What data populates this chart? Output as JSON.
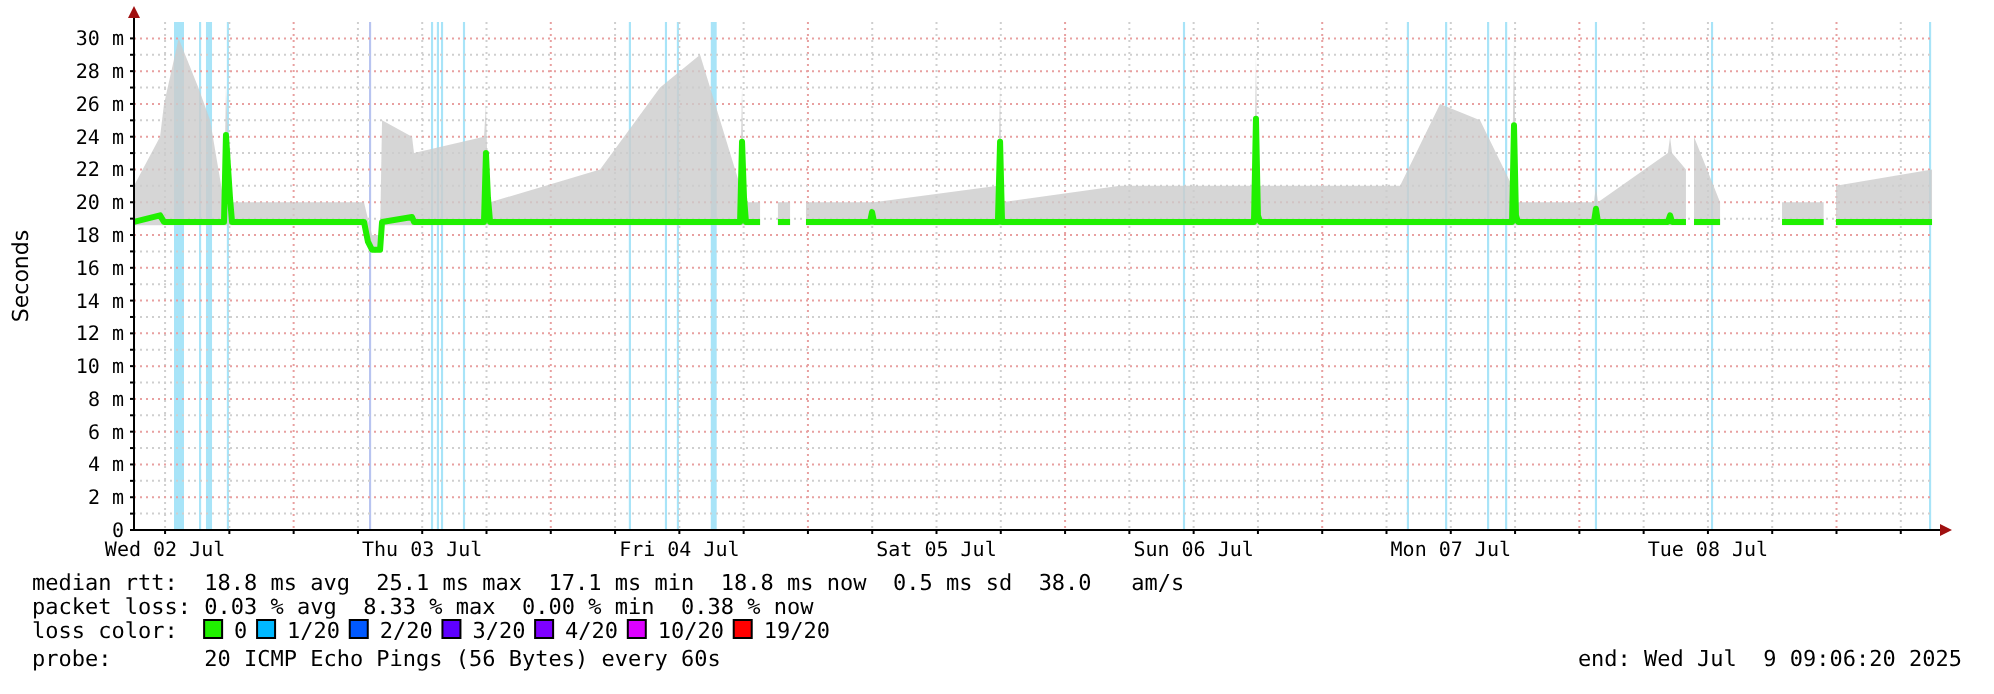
{
  "chart_data": {
    "type": "line",
    "ylabel": "Seconds",
    "legend_title": "loss color:",
    "legend": "bottom",
    "grid": true,
    "xlim": [
      "2025-07-02T09:06",
      "2025-07-09T09:06"
    ],
    "xticks": [
      {
        "value": "2025-07-02T12:00",
        "label": "Wed 02 Jul"
      },
      {
        "value": "2025-07-02T18:00",
        "label": null
      },
      {
        "value": "2025-07-03T00:00",
        "label": null
      },
      {
        "value": "2025-07-03T06:00",
        "label": null
      },
      {
        "value": "2025-07-03T12:00",
        "label": "Thu 03 Jul"
      },
      {
        "value": "2025-07-03T18:00",
        "label": null
      },
      {
        "value": "2025-07-04T00:00",
        "label": null
      },
      {
        "value": "2025-07-04T06:00",
        "label": null
      },
      {
        "value": "2025-07-04T12:00",
        "label": "Fri 04 Jul"
      },
      {
        "value": "2025-07-04T18:00",
        "label": null
      },
      {
        "value": "2025-07-05T00:00",
        "label": null
      },
      {
        "value": "2025-07-05T06:00",
        "label": null
      },
      {
        "value": "2025-07-05T12:00",
        "label": "Sat 05 Jul"
      },
      {
        "value": "2025-07-05T18:00",
        "label": null
      },
      {
        "value": "2025-07-06T00:00",
        "label": null
      },
      {
        "value": "2025-07-06T06:00",
        "label": null
      },
      {
        "value": "2025-07-06T12:00",
        "label": "Sun 06 Jul"
      },
      {
        "value": "2025-07-06T18:00",
        "label": null
      },
      {
        "value": "2025-07-07T00:00",
        "label": null
      },
      {
        "value": "2025-07-07T06:00",
        "label": null
      },
      {
        "value": "2025-07-07T12:00",
        "label": "Mon 07 Jul"
      },
      {
        "value": "2025-07-07T18:00",
        "label": null
      },
      {
        "value": "2025-07-08T00:00",
        "label": null
      },
      {
        "value": "2025-07-08T06:00",
        "label": null
      },
      {
        "value": "2025-07-08T12:00",
        "label": "Tue 08 Jul"
      },
      {
        "value": "2025-07-08T18:00",
        "label": null
      },
      {
        "value": "2025-07-09T00:00",
        "label": null
      },
      {
        "value": "2025-07-09T06:00",
        "label": null
      }
    ],
    "ylim": [
      0,
      31
    ],
    "yticks": [
      0,
      {
        "value": 1,
        "label": null
      },
      {
        "value": 2,
        "label": "2 m"
      },
      {
        "value": 3,
        "label": null
      },
      {
        "value": 4,
        "label": "4 m"
      },
      {
        "value": 5,
        "label": null
      },
      {
        "value": 6,
        "label": "6 m"
      },
      {
        "value": 7,
        "label": null
      },
      {
        "value": 8,
        "label": "8 m"
      },
      {
        "value": 9,
        "label": null
      },
      {
        "value": 10,
        "label": "10 m"
      },
      {
        "value": 11,
        "label": null
      },
      {
        "value": 12,
        "label": "12 m"
      },
      {
        "value": 13,
        "label": null
      },
      {
        "value": 14,
        "label": "14 m"
      },
      {
        "value": 15,
        "label": null
      },
      {
        "value": 16,
        "label": "16 m"
      },
      {
        "value": 17,
        "label": null
      },
      {
        "value": 18,
        "label": "18 m"
      },
      {
        "value": 19,
        "label": null
      },
      {
        "value": 20,
        "label": "20 m"
      },
      {
        "value": 21,
        "label": null
      },
      {
        "value": 22,
        "label": "22 m"
      },
      {
        "value": 23,
        "label": null
      },
      {
        "value": 24,
        "label": "24 m"
      },
      {
        "value": 25,
        "label": null
      },
      {
        "value": 26,
        "label": "26 m"
      },
      {
        "value": 27,
        "label": null
      },
      {
        "value": 28,
        "label": "28 m"
      },
      {
        "value": 29,
        "label": null
      },
      {
        "value": 30,
        "label": "30 m"
      }
    ],
    "series": [
      {
        "name": "0",
        "color": "#20f000",
        "x": [
          "2025-07-02T09:06",
          "2025-07-02T11:32",
          "2025-07-02T11:54",
          "2025-07-02T13:16",
          "2025-07-02T15:06",
          "2025-07-02T16:12",
          "2025-07-02T17:30",
          "2025-07-02T17:41",
          "2025-07-02T18:04",
          "2025-07-02T18:15",
          "2025-07-03T00:36",
          "2025-07-03T06:34",
          "2025-07-03T06:56",
          "2025-07-03T07:19",
          "2025-07-03T08:04",
          "2025-07-03T08:15",
          "2025-07-03T11:03",
          "2025-07-03T11:14",
          "2025-07-03T17:46",
          "2025-07-03T17:57",
          "2025-07-03T18:08",
          "2025-07-03T18:20",
          "2025-07-04T04:36",
          "2025-07-04T10:12",
          "2025-07-04T13:56",
          "2025-07-04T17:40",
          "2025-07-04T17:51",
          "2025-07-04T18:02",
          "2025-07-04T18:13",
          "2025-07-04T19:32",
          "2025-07-04T20:16",
          "2025-07-04T21:12",
          "2025-07-04T22:20",
          "2025-07-04T23:04",
          "2025-07-04T23:49",
          "2025-07-05T05:48",
          "2025-07-05T05:59",
          "2025-07-05T06:10",
          "2025-07-05T17:44",
          "2025-07-05T17:56",
          "2025-07-05T18:07",
          "2025-07-06T05:08",
          "2025-07-06T17:38",
          "2025-07-06T17:49",
          "2025-07-06T18:00",
          "2025-07-06T18:12",
          "2025-07-07T07:16",
          "2025-07-07T11:00",
          "2025-07-07T14:44",
          "2025-07-07T17:43",
          "2025-07-07T17:54",
          "2025-07-07T18:05",
          "2025-07-07T18:16",
          "2025-07-08T01:22",
          "2025-07-08T01:33",
          "2025-07-08T01:44",
          "2025-07-08T08:16",
          "2025-07-08T08:28",
          "2025-07-08T08:39",
          "2025-07-08T09:57",
          "2025-07-08T10:20",
          "2025-07-08T10:42",
          "2025-07-08T13:08",
          "2025-07-08T15:56",
          "2025-07-08T18:55",
          "2025-07-08T21:54",
          "2025-07-08T22:18",
          "2025-07-08T22:33",
          "2025-07-08T22:48",
          "2025-07-08T23:24",
          "2025-07-08T23:57",
          "2025-07-09T08:55"
        ],
        "values": [
          18.8,
          19.2,
          18.8,
          18.8,
          18.8,
          18.8,
          18.8,
          24.1,
          20.2,
          18.8,
          18.8,
          18.8,
          17.6,
          17.1,
          17.1,
          18.8,
          19.1,
          18.8,
          18.8,
          23,
          20.3,
          18.8,
          18.8,
          18.8,
          18.8,
          18.8,
          23.7,
          20.3,
          18.8,
          18.8,
          null,
          18.8,
          18.8,
          null,
          18.8,
          18.8,
          19.4,
          18.8,
          18.8,
          23.7,
          18.8,
          18.8,
          18.8,
          25.1,
          19.2,
          18.8,
          18.8,
          18.8,
          18.8,
          18.8,
          24.7,
          19.2,
          18.8,
          18.8,
          19.6,
          18.8,
          18.8,
          19.2,
          18.8,
          18.8,
          null,
          18.8,
          18.8,
          null,
          18.8,
          18.8,
          18.8,
          18.8,
          18.8,
          null,
          18.8,
          18.8
        ],
        "lower": [
          18.6,
          18.6,
          18.6,
          18.6,
          18.6,
          18.6,
          18.6,
          18.6,
          18.6,
          18.6,
          18.6,
          18.6,
          17.4,
          17,
          17,
          18.6,
          18.6,
          18.6,
          18.6,
          18.6,
          18.6,
          18.6,
          18.6,
          18.6,
          18.6,
          18.6,
          18.6,
          18.6,
          18.6,
          18.6,
          null,
          18.6,
          18.6,
          null,
          18.6,
          18.6,
          18.6,
          18.6,
          18.6,
          18.6,
          18.6,
          18.6,
          18.6,
          18.6,
          18.6,
          18.6,
          18.6,
          18.6,
          18.6,
          18.6,
          18.6,
          18.6,
          18.6,
          18.6,
          18.6,
          18.6,
          18.6,
          18.6,
          18.6,
          18.6,
          null,
          18.6,
          18.6,
          null,
          18.6,
          18.6,
          18.6,
          18.6,
          18.6,
          null,
          18.6,
          18.6
        ],
        "upper": [
          21,
          24,
          26,
          30,
          27,
          25,
          20,
          27,
          21,
          20,
          20,
          20,
          19,
          18,
          18,
          25,
          24,
          23,
          24,
          26,
          21,
          20,
          22,
          27,
          29,
          21,
          27,
          21,
          20,
          20,
          null,
          20,
          20,
          null,
          20,
          20,
          20,
          20,
          21,
          27,
          20,
          21,
          21,
          29,
          21,
          21,
          21,
          26,
          25,
          21,
          30,
          21,
          20,
          20,
          21,
          20,
          23,
          24,
          23,
          22,
          null,
          24,
          20,
          null,
          20,
          20,
          20,
          20,
          20,
          null,
          21,
          22
        ]
      },
      {
        "name": "1/20",
        "color": "#00b8ff"
      },
      {
        "name": "2/20",
        "color": "#0059ff"
      },
      {
        "name": "3/20",
        "color": "#5e00ff"
      },
      {
        "name": "4/20",
        "color": "#7e00ff"
      },
      {
        "name": "10/20",
        "color": "#dd00ff"
      },
      {
        "name": "19/20",
        "color": "#ff0000"
      }
    ],
    "bands": [
      {
        "axis": "x",
        "from": "2025-07-02T12:50",
        "to": "2025-07-02T13:46",
        "color": "#a8e4f8"
      },
      {
        "axis": "x",
        "from": "2025-07-02T15:10",
        "to": "2025-07-02T15:22",
        "color": "#a8e4f8"
      },
      {
        "axis": "x",
        "from": "2025-07-02T15:49",
        "to": "2025-07-02T16:23",
        "color": "#a8e4f8"
      },
      {
        "axis": "x",
        "from": "2025-07-02T17:46",
        "to": "2025-07-02T17:58",
        "color": "#a8e4f8"
      },
      {
        "axis": "x",
        "from": "2025-07-03T07:02",
        "to": "2025-07-03T07:14",
        "color": "#b8c4f0"
      },
      {
        "axis": "x",
        "from": "2025-07-03T12:49",
        "to": "2025-07-03T13:01",
        "color": "#a8e4f8"
      },
      {
        "axis": "x",
        "from": "2025-07-03T13:22",
        "to": "2025-07-03T13:34",
        "color": "#a8e4f8"
      },
      {
        "axis": "x",
        "from": "2025-07-03T13:45",
        "to": "2025-07-03T13:57",
        "color": "#a8e4f8"
      },
      {
        "axis": "x",
        "from": "2025-07-03T15:48",
        "to": "2025-07-03T16:00",
        "color": "#a8e4f8"
      },
      {
        "axis": "x",
        "from": "2025-07-04T07:17",
        "to": "2025-07-04T07:29",
        "color": "#a8e4f8"
      },
      {
        "axis": "x",
        "from": "2025-07-04T10:39",
        "to": "2025-07-04T10:51",
        "color": "#a8e4f8"
      },
      {
        "axis": "x",
        "from": "2025-07-04T11:46",
        "to": "2025-07-04T11:58",
        "color": "#a8e4f8"
      },
      {
        "axis": "x",
        "from": "2025-07-04T14:56",
        "to": "2025-07-04T15:29",
        "color": "#a8e4f8"
      },
      {
        "axis": "x",
        "from": "2025-07-06T11:00",
        "to": "2025-07-06T11:12",
        "color": "#a8e4f8"
      },
      {
        "axis": "x",
        "from": "2025-07-07T07:54",
        "to": "2025-07-07T08:06",
        "color": "#a8e4f8"
      },
      {
        "axis": "x",
        "from": "2025-07-07T11:28",
        "to": "2025-07-07T11:40",
        "color": "#a8e4f8"
      },
      {
        "axis": "x",
        "from": "2025-07-07T15:23",
        "to": "2025-07-07T15:35",
        "color": "#a8e4f8"
      },
      {
        "axis": "x",
        "from": "2025-07-07T17:04",
        "to": "2025-07-07T17:16",
        "color": "#a8e4f8"
      },
      {
        "axis": "x",
        "from": "2025-07-08T01:27",
        "to": "2025-07-08T01:39",
        "color": "#a8e4f8"
      },
      {
        "axis": "x",
        "from": "2025-07-08T12:17",
        "to": "2025-07-08T12:29",
        "color": "#a8e4f8"
      },
      {
        "axis": "x",
        "from": "2025-07-09T08:38",
        "to": "2025-07-09T08:50",
        "color": "#a8e4f8"
      }
    ],
    "annotations": [
      "median rtt:  18.8 ms avg  25.1 ms max  17.1 ms min  18.8 ms now  0.5 ms sd  38.0   am/s",
      "packet loss: 0.03 % avg  8.33 % max  0.00 % min  0.38 % now",
      "probe:       20 ICMP Echo Pings (56 Bytes) every 60s",
      "end: Wed Jul  9 09:06:20 2025"
    ]
  }
}
